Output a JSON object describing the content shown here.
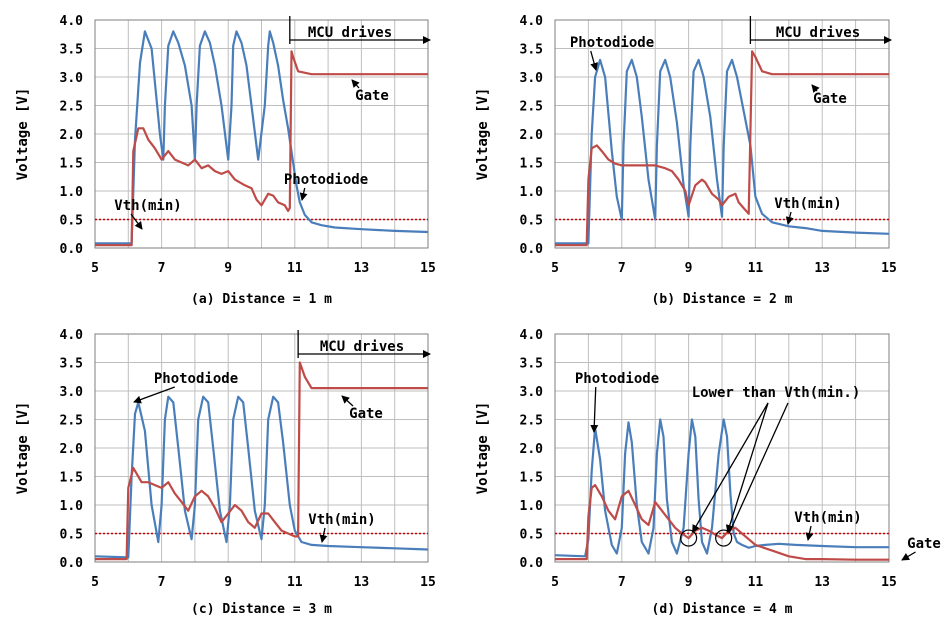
{
  "chart_data": [
    {
      "type": "line",
      "caption": "(a) Distance = 1 m",
      "ylabel": "Voltage [V]",
      "xlim": [
        5,
        15
      ],
      "ylim": [
        0,
        4
      ],
      "xticks": [
        "5",
        "7",
        "9",
        "11",
        "13",
        "15"
      ],
      "yticks": [
        "0.0",
        "0.5",
        "1.0",
        "1.5",
        "2.0",
        "2.5",
        "3.0",
        "3.5",
        "4.0"
      ],
      "grid": true,
      "colors": {
        "photodiode": "#4a7ebb",
        "gate": "#be4b48",
        "vth": "#cc0000"
      },
      "mcu_start": 10.85,
      "vth": 0.5,
      "annotations": [
        {
          "text": "MCU drives",
          "kind": "mcu"
        },
        {
          "text": "Gate",
          "kind": "gate"
        },
        {
          "text": "Photodiode",
          "kind": "photodiode"
        },
        {
          "text": "Vth(min)",
          "kind": "vth"
        }
      ],
      "series": [
        {
          "key": "photodiode",
          "x": [
            5.0,
            6.1,
            6.2,
            6.35,
            6.5,
            6.7,
            6.85,
            6.95,
            7.05,
            7.1,
            7.2,
            7.35,
            7.5,
            7.7,
            7.9,
            8.0,
            8.05,
            8.15,
            8.3,
            8.45,
            8.6,
            8.8,
            9.0,
            9.1,
            9.15,
            9.25,
            9.4,
            9.55,
            9.7,
            9.9,
            10.1,
            10.2,
            10.25,
            10.35,
            10.5,
            10.65,
            10.8,
            10.95,
            11.05,
            11.15,
            11.3,
            11.5,
            11.8,
            12.2,
            13.0,
            14.0,
            15.0
          ],
          "y": [
            0.08,
            0.08,
            1.9,
            3.25,
            3.8,
            3.5,
            2.6,
            2.0,
            1.55,
            2.5,
            3.55,
            3.8,
            3.6,
            3.2,
            2.5,
            1.55,
            2.5,
            3.55,
            3.8,
            3.6,
            3.2,
            2.5,
            1.55,
            2.5,
            3.55,
            3.8,
            3.6,
            3.2,
            2.5,
            1.55,
            2.5,
            3.55,
            3.8,
            3.6,
            3.2,
            2.6,
            2.1,
            1.5,
            1.1,
            0.8,
            0.58,
            0.45,
            0.4,
            0.36,
            0.33,
            0.3,
            0.28
          ]
        },
        {
          "key": "gate",
          "x": [
            5.0,
            6.1,
            6.15,
            6.3,
            6.45,
            6.6,
            6.8,
            7.0,
            7.2,
            7.4,
            7.6,
            7.8,
            8.0,
            8.2,
            8.4,
            8.6,
            8.8,
            9.0,
            9.2,
            9.5,
            9.7,
            9.85,
            10.0,
            10.2,
            10.35,
            10.5,
            10.7,
            10.8,
            10.85,
            10.9,
            10.95,
            11.1,
            11.5,
            12.0,
            13.0,
            14.0,
            15.0
          ],
          "y": [
            0.05,
            0.05,
            1.7,
            2.1,
            2.1,
            1.9,
            1.75,
            1.55,
            1.7,
            1.55,
            1.5,
            1.45,
            1.55,
            1.4,
            1.45,
            1.35,
            1.3,
            1.35,
            1.2,
            1.1,
            1.05,
            0.85,
            0.75,
            0.95,
            0.92,
            0.8,
            0.75,
            0.65,
            0.7,
            3.45,
            3.35,
            3.1,
            3.05,
            3.05,
            3.05,
            3.05,
            3.05
          ]
        }
      ]
    },
    {
      "type": "line",
      "caption": "(b) Distance = 2 m",
      "ylabel": "Voltage [V]",
      "xlim": [
        5,
        15
      ],
      "ylim": [
        0,
        4
      ],
      "xticks": [
        "5",
        "7",
        "9",
        "11",
        "13",
        "15"
      ],
      "yticks": [
        "0.0",
        "0.5",
        "1.0",
        "1.5",
        "2.0",
        "2.5",
        "3.0",
        "3.5",
        "4.0"
      ],
      "grid": true,
      "colors": {
        "photodiode": "#4a7ebb",
        "gate": "#be4b48",
        "vth": "#cc0000"
      },
      "mcu_start": 10.85,
      "vth": 0.5,
      "annotations": [
        {
          "text": "MCU drives",
          "kind": "mcu"
        },
        {
          "text": "Photodiode",
          "kind": "photodiode"
        },
        {
          "text": "Gate",
          "kind": "gate"
        },
        {
          "text": "Vth(min)",
          "kind": "vth"
        }
      ],
      "series": [
        {
          "key": "photodiode",
          "x": [
            5.0,
            6.0,
            6.1,
            6.2,
            6.35,
            6.5,
            6.7,
            6.85,
            7.0,
            7.05,
            7.15,
            7.3,
            7.45,
            7.6,
            7.8,
            8.0,
            8.05,
            8.15,
            8.3,
            8.45,
            8.65,
            8.85,
            9.0,
            9.05,
            9.15,
            9.3,
            9.45,
            9.65,
            9.85,
            10.0,
            10.05,
            10.15,
            10.3,
            10.45,
            10.65,
            10.85,
            11.0,
            11.2,
            11.5,
            12.0,
            12.5,
            13.0,
            14.0,
            15.0
          ],
          "y": [
            0.08,
            0.08,
            2.0,
            3.0,
            3.3,
            3.0,
            1.7,
            0.9,
            0.5,
            1.8,
            3.1,
            3.3,
            3.0,
            2.3,
            1.2,
            0.5,
            1.8,
            3.1,
            3.3,
            3.0,
            2.2,
            1.1,
            0.55,
            1.8,
            3.1,
            3.3,
            3.0,
            2.3,
            1.2,
            0.55,
            1.8,
            3.1,
            3.3,
            3.0,
            2.4,
            1.8,
            0.9,
            0.6,
            0.45,
            0.38,
            0.35,
            0.3,
            0.27,
            0.25
          ]
        },
        {
          "key": "gate",
          "x": [
            5.0,
            5.95,
            6.0,
            6.1,
            6.25,
            6.4,
            6.6,
            6.8,
            7.0,
            7.5,
            8.0,
            8.3,
            8.5,
            8.7,
            8.9,
            9.0,
            9.2,
            9.4,
            9.5,
            9.7,
            9.9,
            10.0,
            10.2,
            10.4,
            10.5,
            10.65,
            10.8,
            10.9,
            11.0,
            11.2,
            11.5,
            12.0,
            13.0,
            14.0,
            15.0
          ],
          "y": [
            0.05,
            0.05,
            1.2,
            1.75,
            1.8,
            1.7,
            1.55,
            1.48,
            1.45,
            1.45,
            1.45,
            1.4,
            1.35,
            1.2,
            1.0,
            0.75,
            1.1,
            1.2,
            1.15,
            0.95,
            0.85,
            0.75,
            0.9,
            0.95,
            0.8,
            0.7,
            0.6,
            3.45,
            3.35,
            3.1,
            3.05,
            3.05,
            3.05,
            3.05,
            3.05
          ]
        }
      ]
    },
    {
      "type": "line",
      "caption": "(c) Distance = 3 m",
      "ylabel": "Voltage [V]",
      "xlim": [
        5,
        15
      ],
      "ylim": [
        0,
        4
      ],
      "xticks": [
        "5",
        "7",
        "9",
        "11",
        "13",
        "15"
      ],
      "yticks": [
        "0.0",
        "0.5",
        "1.0",
        "1.5",
        "2.0",
        "2.5",
        "3.0",
        "3.5",
        "4.0"
      ],
      "grid": true,
      "colors": {
        "photodiode": "#4a7ebb",
        "gate": "#be4b48",
        "vth": "#cc0000"
      },
      "mcu_start": 11.1,
      "vth": 0.5,
      "annotations": [
        {
          "text": "MCU drives",
          "kind": "mcu"
        },
        {
          "text": "Photodiode",
          "kind": "photodiode"
        },
        {
          "text": "Gate",
          "kind": "gate"
        },
        {
          "text": "Vth(min)",
          "kind": "vth"
        }
      ],
      "series": [
        {
          "key": "photodiode",
          "x": [
            5.0,
            6.0,
            6.1,
            6.2,
            6.3,
            6.5,
            6.7,
            6.9,
            7.0,
            7.1,
            7.2,
            7.35,
            7.5,
            7.7,
            7.9,
            8.0,
            8.1,
            8.25,
            8.4,
            8.55,
            8.75,
            8.95,
            9.05,
            9.15,
            9.3,
            9.45,
            9.6,
            9.8,
            10.0,
            10.1,
            10.2,
            10.35,
            10.5,
            10.65,
            10.85,
            11.0,
            11.2,
            11.5,
            12.0,
            13.0,
            14.0,
            15.0
          ],
          "y": [
            0.1,
            0.08,
            1.5,
            2.6,
            2.8,
            2.3,
            1.0,
            0.35,
            1.0,
            2.5,
            2.9,
            2.8,
            2.0,
            0.9,
            0.4,
            1.0,
            2.5,
            2.9,
            2.8,
            2.0,
            0.9,
            0.35,
            1.0,
            2.5,
            2.9,
            2.8,
            2.0,
            0.9,
            0.4,
            1.0,
            2.5,
            2.9,
            2.8,
            2.1,
            1.0,
            0.55,
            0.35,
            0.3,
            0.28,
            0.26,
            0.24,
            0.22
          ]
        },
        {
          "key": "gate",
          "x": [
            5.0,
            5.95,
            6.0,
            6.15,
            6.25,
            6.4,
            6.6,
            6.8,
            7.0,
            7.2,
            7.4,
            7.6,
            7.8,
            8.0,
            8.2,
            8.4,
            8.6,
            8.8,
            9.0,
            9.2,
            9.4,
            9.6,
            9.8,
            10.0,
            10.2,
            10.4,
            10.6,
            10.8,
            11.0,
            11.1,
            11.15,
            11.3,
            11.5,
            12.0,
            13.0,
            14.0,
            15.0
          ],
          "y": [
            0.05,
            0.05,
            1.3,
            1.65,
            1.55,
            1.4,
            1.4,
            1.35,
            1.3,
            1.4,
            1.2,
            1.05,
            0.9,
            1.15,
            1.25,
            1.15,
            0.95,
            0.7,
            0.85,
            1.0,
            0.9,
            0.7,
            0.6,
            0.85,
            0.85,
            0.7,
            0.55,
            0.5,
            0.45,
            0.45,
            3.5,
            3.25,
            3.05,
            3.05,
            3.05,
            3.05,
            3.05
          ]
        }
      ]
    },
    {
      "type": "line",
      "caption": "(d) Distance = 4 m",
      "ylabel": "Voltage [V]",
      "xlim": [
        5,
        15
      ],
      "ylim": [
        0,
        4
      ],
      "xticks": [
        "5",
        "7",
        "9",
        "11",
        "13",
        "15"
      ],
      "yticks": [
        "0.0",
        "0.5",
        "1.0",
        "1.5",
        "2.0",
        "2.5",
        "3.0",
        "3.5",
        "4.0"
      ],
      "grid": true,
      "colors": {
        "photodiode": "#4a7ebb",
        "gate": "#be4b48",
        "vth": "#cc0000"
      },
      "vth": 0.5,
      "annotations": [
        {
          "text": "Photodiode",
          "kind": "photodiode"
        },
        {
          "text": "Lower than Vth(min.)",
          "kind": "lower"
        },
        {
          "text": "Vth(min)",
          "kind": "vth"
        },
        {
          "text": "Gate",
          "kind": "gate"
        }
      ],
      "circles": [
        {
          "x": 9.0,
          "y": 0.42
        },
        {
          "x": 10.05,
          "y": 0.42
        }
      ],
      "series": [
        {
          "key": "photodiode",
          "x": [
            5.0,
            5.9,
            6.0,
            6.1,
            6.2,
            6.35,
            6.5,
            6.7,
            6.85,
            7.0,
            7.1,
            7.2,
            7.3,
            7.45,
            7.6,
            7.8,
            7.95,
            8.05,
            8.15,
            8.25,
            8.35,
            8.5,
            8.65,
            8.85,
            9.0,
            9.1,
            9.2,
            9.3,
            9.4,
            9.55,
            9.7,
            9.9,
            10.05,
            10.15,
            10.25,
            10.35,
            10.45,
            10.6,
            10.8,
            11.0,
            11.3,
            11.7,
            12.2,
            13.0,
            14.0,
            15.0
          ],
          "y": [
            0.12,
            0.1,
            0.4,
            1.6,
            2.35,
            1.8,
            0.9,
            0.3,
            0.15,
            0.6,
            1.9,
            2.45,
            2.1,
            1.0,
            0.35,
            0.15,
            0.6,
            1.9,
            2.5,
            2.2,
            1.1,
            0.35,
            0.15,
            0.6,
            1.9,
            2.5,
            2.2,
            1.1,
            0.35,
            0.15,
            0.6,
            1.9,
            2.5,
            2.2,
            1.2,
            0.5,
            0.35,
            0.3,
            0.25,
            0.28,
            0.3,
            0.32,
            0.3,
            0.28,
            0.26,
            0.26
          ]
        },
        {
          "key": "gate",
          "x": [
            5.0,
            5.95,
            6.0,
            6.1,
            6.2,
            6.4,
            6.6,
            6.8,
            7.0,
            7.2,
            7.4,
            7.6,
            7.8,
            8.0,
            8.2,
            8.4,
            8.6,
            8.8,
            9.0,
            9.2,
            9.4,
            9.6,
            9.8,
            10.0,
            10.2,
            10.4,
            10.6,
            10.8,
            11.0,
            11.5,
            12.0,
            12.5,
            13.0,
            14.0,
            15.0
          ],
          "y": [
            0.05,
            0.05,
            0.8,
            1.3,
            1.35,
            1.15,
            0.9,
            0.75,
            1.15,
            1.25,
            1.0,
            0.75,
            0.65,
            1.05,
            0.9,
            0.75,
            0.6,
            0.5,
            0.42,
            0.55,
            0.6,
            0.55,
            0.48,
            0.42,
            0.55,
            0.6,
            0.5,
            0.4,
            0.3,
            0.2,
            0.1,
            0.05,
            0.05,
            0.04,
            0.04
          ]
        }
      ]
    }
  ]
}
